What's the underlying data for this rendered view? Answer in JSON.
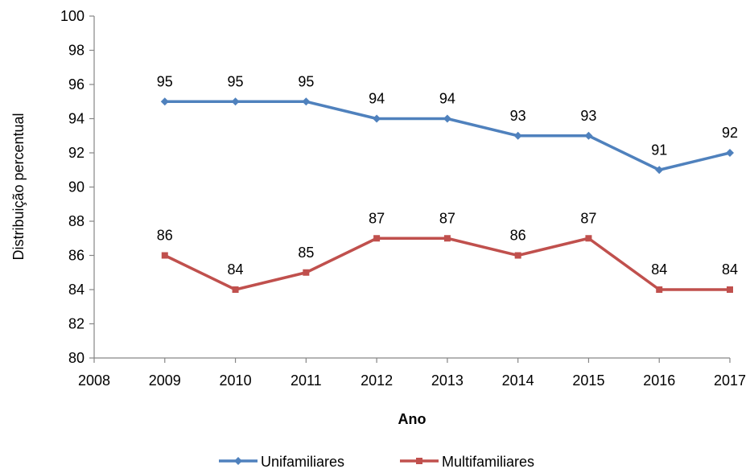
{
  "chart_data": {
    "type": "line",
    "xlabel": "Ano",
    "ylabel": "Distribuição percentual",
    "xlim": [
      2008,
      2017
    ],
    "ylim": [
      80,
      100
    ],
    "x_ticks": [
      "2008",
      "2009",
      "2010",
      "2011",
      "2012",
      "2013",
      "2014",
      "2015",
      "2016",
      "2017"
    ],
    "y_ticks": [
      "80",
      "82",
      "84",
      "86",
      "88",
      "90",
      "92",
      "94",
      "96",
      "98",
      "100"
    ],
    "grid": false,
    "legend_position": "bottom",
    "series": [
      {
        "name": "Unifamiliares",
        "color": "#4F81BD",
        "marker": "diamond",
        "x": [
          2009,
          2010,
          2011,
          2012,
          2013,
          2014,
          2015,
          2016,
          2017
        ],
        "values": [
          95,
          95,
          95,
          94,
          94,
          93,
          93,
          91,
          92
        ]
      },
      {
        "name": "Multifamiliares",
        "color": "#C0504D",
        "marker": "square",
        "x": [
          2009,
          2010,
          2011,
          2012,
          2013,
          2014,
          2015,
          2016,
          2017
        ],
        "values": [
          86,
          84,
          85,
          87,
          87,
          86,
          87,
          84,
          84
        ]
      }
    ]
  }
}
